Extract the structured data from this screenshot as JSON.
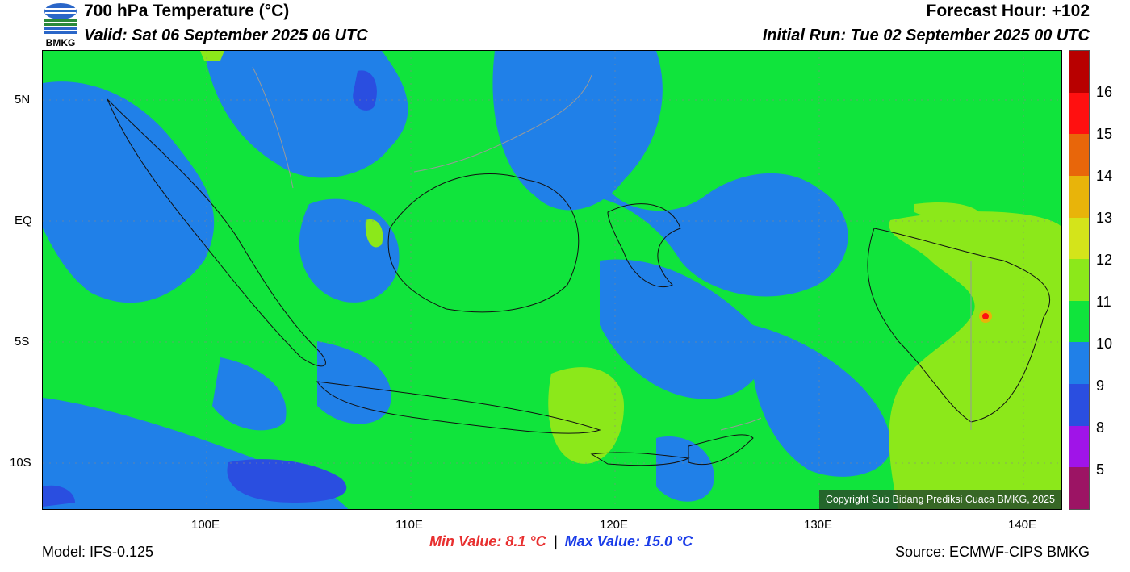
{
  "header": {
    "title": "700 hPa Temperature (°C)",
    "valid": "Valid: Sat 06 September 2025 06 UTC",
    "forecast_hour": "Forecast Hour: +102",
    "initial_run": "Initial Run: Tue 02 September 2025 00 UTC",
    "logo_text": "BMKG"
  },
  "axes": {
    "y_ticks": [
      "5N",
      "EQ",
      "5S",
      "10S"
    ],
    "x_ticks": [
      "100E",
      "110E",
      "120E",
      "130E",
      "140E"
    ]
  },
  "colorbar": {
    "labels": [
      "16",
      "15",
      "14",
      "13",
      "12",
      "11",
      "10",
      "9",
      "8",
      "5"
    ],
    "segments": [
      {
        "color": "#b80000"
      },
      {
        "color": "#ff1010"
      },
      {
        "color": "#e8660a"
      },
      {
        "color": "#e8b40a"
      },
      {
        "color": "#d4e41a"
      },
      {
        "color": "#8ce81a"
      },
      {
        "color": "#10e43c"
      },
      {
        "color": "#2080e8"
      },
      {
        "color": "#2a4ee0"
      },
      {
        "color": "#a014e8"
      },
      {
        "color": "#9c1464"
      }
    ]
  },
  "map": {
    "copyright": "Copyright Sub Bidang Prediksi Cuaca BMKG, 2025"
  },
  "footer": {
    "model": "Model: IFS-0.125",
    "min_value": "Min Value: 8.1 °C",
    "separator": "|",
    "max_value": "Max Value: 15.0 °C",
    "source": "Source: ECMWF-CIPS BMKG"
  },
  "colors": {
    "min_value": "#e83030",
    "max_value": "#1a3ce8"
  }
}
